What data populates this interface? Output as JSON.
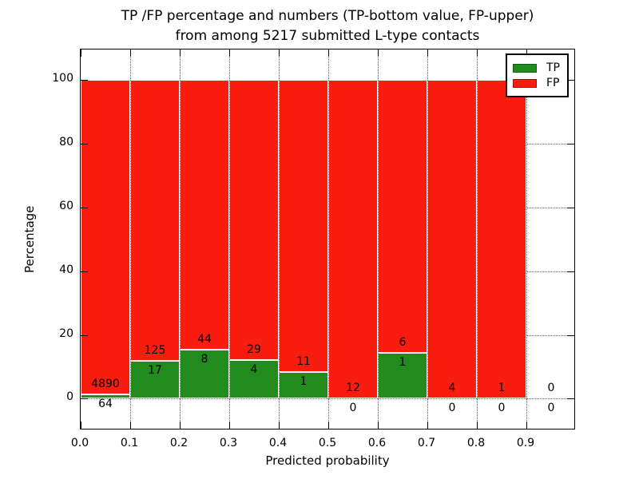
{
  "figure": {
    "title_line1": "TP /FP percentage and numbers (TP-bottom value, FP-upper)",
    "title_line2": "from among 5217 submitted L-type contacts",
    "xlabel": "Predicted probability",
    "ylabel": "Percentage"
  },
  "legend": {
    "position": "upper right",
    "items": [
      {
        "label": "TP",
        "color": "#238b1e"
      },
      {
        "label": "FP",
        "color": "#f91d10"
      }
    ]
  },
  "axis": {
    "x_ticks": [
      "0.0",
      "0.1",
      "0.2",
      "0.3",
      "0.4",
      "0.5",
      "0.6",
      "0.7",
      "0.8",
      "0.9"
    ],
    "y_ticks": [
      "0",
      "20",
      "40",
      "60",
      "80",
      "100"
    ]
  },
  "chart_data": {
    "type": "bar",
    "stacked": true,
    "normalized": "each bar scaled to 100% of bin total",
    "title": "TP /FP percentage and numbers (TP-bottom value, FP-upper) from among 5217 submitted L-type contacts",
    "xlabel": "Predicted probability",
    "ylabel": "Percentage",
    "xlim": [
      0.0,
      1.0
    ],
    "ylim": [
      -10,
      110
    ],
    "grid": true,
    "legend_position": "upper right",
    "total_contacts": 5217,
    "bin_width": 0.1,
    "categories": [
      "0.0-0.1",
      "0.1-0.2",
      "0.2-0.3",
      "0.3-0.4",
      "0.4-0.5",
      "0.5-0.6",
      "0.6-0.7",
      "0.7-0.8",
      "0.8-0.9",
      "0.9-1.0"
    ],
    "series": [
      {
        "name": "TP",
        "color": "#238b1e",
        "counts": [
          64,
          17,
          8,
          4,
          1,
          0,
          1,
          0,
          0,
          0
        ],
        "percent": [
          1.29,
          11.97,
          15.38,
          12.12,
          8.33,
          0.0,
          14.29,
          0.0,
          0.0,
          0.0
        ]
      },
      {
        "name": "FP",
        "color": "#f91d10",
        "counts": [
          4890,
          125,
          44,
          29,
          11,
          12,
          6,
          4,
          1,
          0
        ],
        "percent": [
          98.71,
          88.03,
          84.62,
          87.88,
          91.67,
          100.0,
          85.71,
          100.0,
          100.0,
          0.0
        ]
      }
    ]
  }
}
